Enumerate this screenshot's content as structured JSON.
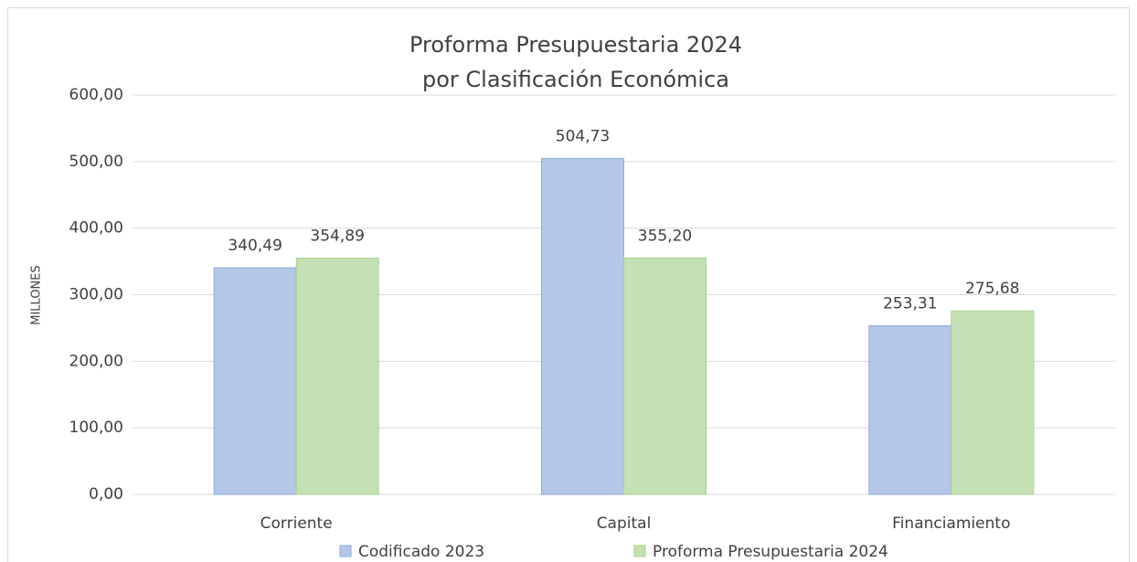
{
  "chart_data": {
    "type": "bar",
    "title": [
      "Proforma Presupuestaria 2024",
      "por Clasificación Económica"
    ],
    "y_label": "MILLONES",
    "categories": [
      "Corriente",
      "Capital",
      "Financiamiento"
    ],
    "series": [
      {
        "name": "Codificado 2023",
        "color": "#b4c7e7",
        "stroke": "#8faadc",
        "values": [
          340.49,
          504.73,
          253.31
        ],
        "value_labels": [
          "340,49",
          "504,73",
          "253,31"
        ]
      },
      {
        "name": "Proforma Presupuestaria 2024",
        "color": "#c5e0b4",
        "stroke": "#a9d18e",
        "values": [
          354.89,
          355.2,
          275.68
        ],
        "value_labels": [
          "354,89",
          "355,20",
          "275,68"
        ]
      }
    ],
    "ylim": [
      0,
      600
    ],
    "yticks": [
      {
        "value": 0,
        "label": "0,00"
      },
      {
        "value": 100,
        "label": "100,00"
      },
      {
        "value": 200,
        "label": "200,00"
      },
      {
        "value": 300,
        "label": "300,00"
      },
      {
        "value": 400,
        "label": "400,00"
      },
      {
        "value": 500,
        "label": "500,00"
      },
      {
        "value": 600,
        "label": "600,00"
      }
    ],
    "grid": true,
    "legend": "bottom"
  }
}
